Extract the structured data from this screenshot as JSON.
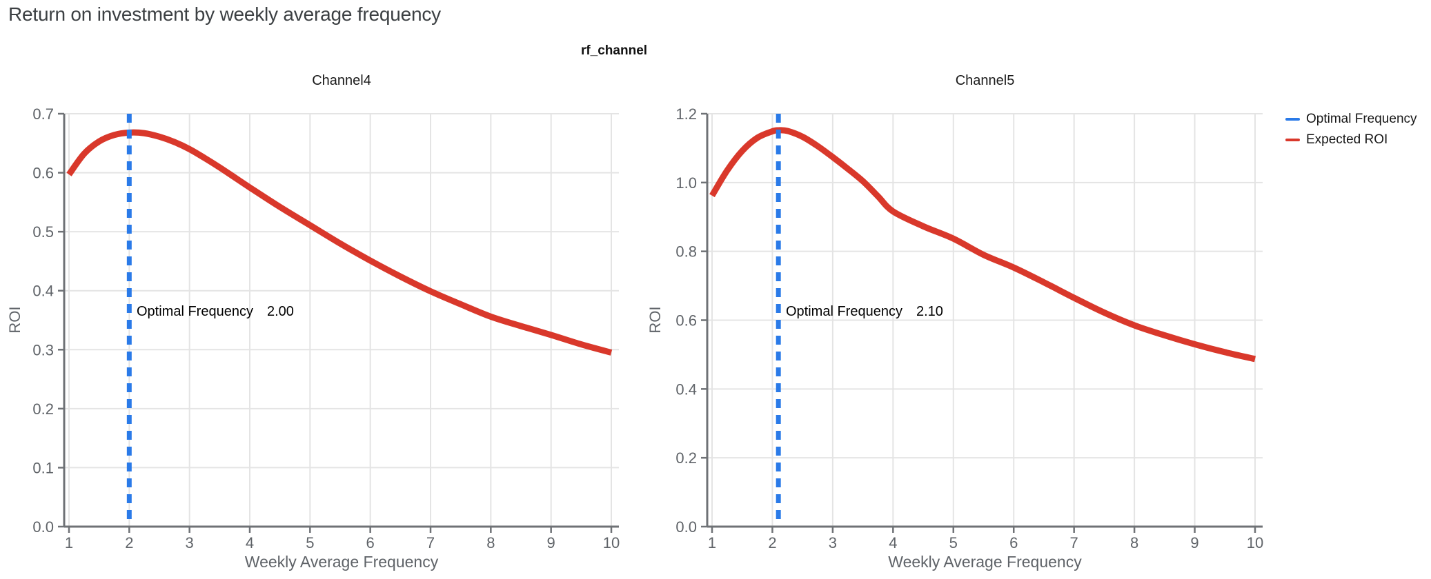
{
  "page": {
    "title": "Return on investment by weekly average frequency",
    "facet_title": "rf_channel"
  },
  "style": {
    "grid_color": "#e4e4e4",
    "axis_color": "#6f7276",
    "tick_label_color": "#5f6368",
    "optimal_color": "#2a7ae8",
    "roi_color": "#d9382b"
  },
  "legend": {
    "position": "top-right",
    "items": [
      {
        "label": "Optimal Frequency",
        "color": "#2a7ae8"
      },
      {
        "label": "Expected ROI",
        "color": "#d9382b"
      }
    ]
  },
  "chart_data": [
    {
      "type": "line",
      "title": "Channel4",
      "xlabel": "Weekly Average Frequency",
      "ylabel": "ROI",
      "xlim": [
        1,
        10
      ],
      "ylim": [
        0,
        0.7
      ],
      "xticks": [
        1,
        2,
        3,
        4,
        5,
        6,
        7,
        8,
        9,
        10
      ],
      "yticks": [
        0.0,
        0.1,
        0.2,
        0.3,
        0.4,
        0.5,
        0.6,
        0.7
      ],
      "grid": true,
      "optimal_frequency": 2.0,
      "annotation": {
        "text": "Optimal Frequency",
        "value": "2.00"
      },
      "series": [
        {
          "name": "Expected ROI",
          "x": [
            1,
            1.25,
            1.5,
            1.75,
            2,
            2.25,
            2.5,
            2.75,
            3,
            3.25,
            3.5,
            3.75,
            4,
            4.5,
            5,
            5.5,
            6,
            6.5,
            7,
            7.5,
            8,
            8.5,
            9,
            9.5,
            10
          ],
          "y": [
            0.597,
            0.632,
            0.653,
            0.664,
            0.668,
            0.667,
            0.661,
            0.652,
            0.64,
            0.625,
            0.609,
            0.592,
            0.575,
            0.542,
            0.511,
            0.48,
            0.451,
            0.424,
            0.399,
            0.377,
            0.356,
            0.34,
            0.325,
            0.309,
            0.295
          ]
        }
      ]
    },
    {
      "type": "line",
      "title": "Channel5",
      "xlabel": "Weekly Average Frequency",
      "ylabel": "ROI",
      "xlim": [
        1,
        10
      ],
      "ylim": [
        0,
        1.2
      ],
      "xticks": [
        1,
        2,
        3,
        4,
        5,
        6,
        7,
        8,
        9,
        10
      ],
      "yticks": [
        0.0,
        0.2,
        0.4,
        0.6,
        0.8,
        1.0,
        1.2
      ],
      "grid": true,
      "optimal_frequency": 2.1,
      "annotation": {
        "text": "Optimal Frequency",
        "value": "2.10"
      },
      "series": [
        {
          "name": "Expected ROI",
          "x": [
            1,
            1.25,
            1.5,
            1.75,
            2,
            2.1,
            2.25,
            2.5,
            2.75,
            3,
            3.25,
            3.5,
            3.75,
            4,
            4.5,
            5,
            5.5,
            6,
            6.5,
            7,
            7.5,
            8,
            8.5,
            9,
            9.5,
            10
          ],
          "y": [
            0.962,
            1.035,
            1.092,
            1.13,
            1.149,
            1.152,
            1.15,
            1.133,
            1.106,
            1.074,
            1.04,
            1.004,
            0.96,
            0.916,
            0.873,
            0.837,
            0.79,
            0.753,
            0.71,
            0.665,
            0.622,
            0.585,
            0.556,
            0.53,
            0.507,
            0.487
          ]
        }
      ]
    }
  ]
}
